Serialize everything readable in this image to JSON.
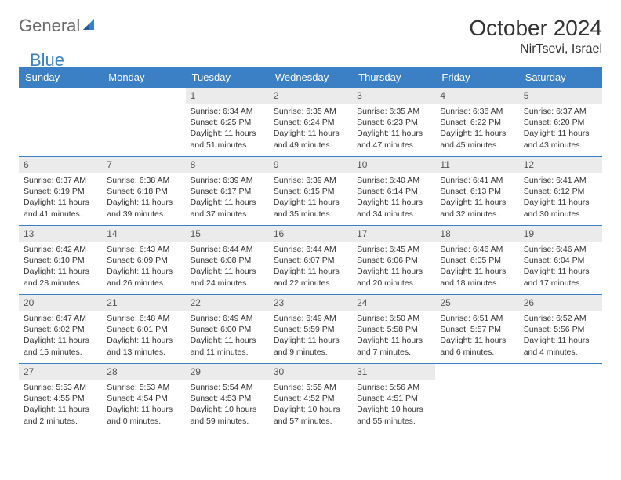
{
  "logo": {
    "text1": "General",
    "text2": "Blue"
  },
  "title": "October 2024",
  "location": "NirTsevi, Israel",
  "colors": {
    "header_bg": "#3b7fc4",
    "header_text": "#ffffff",
    "daynum_bg": "#ebebeb",
    "border": "#3b7fc4",
    "logo_gray": "#6b6b6b",
    "logo_blue": "#3b7fc4"
  },
  "weekdays": [
    "Sunday",
    "Monday",
    "Tuesday",
    "Wednesday",
    "Thursday",
    "Friday",
    "Saturday"
  ],
  "weeks": [
    [
      {
        "n": "",
        "sr": "",
        "ss": "",
        "dl": ""
      },
      {
        "n": "",
        "sr": "",
        "ss": "",
        "dl": ""
      },
      {
        "n": "1",
        "sr": "Sunrise: 6:34 AM",
        "ss": "Sunset: 6:25 PM",
        "dl": "Daylight: 11 hours and 51 minutes."
      },
      {
        "n": "2",
        "sr": "Sunrise: 6:35 AM",
        "ss": "Sunset: 6:24 PM",
        "dl": "Daylight: 11 hours and 49 minutes."
      },
      {
        "n": "3",
        "sr": "Sunrise: 6:35 AM",
        "ss": "Sunset: 6:23 PM",
        "dl": "Daylight: 11 hours and 47 minutes."
      },
      {
        "n": "4",
        "sr": "Sunrise: 6:36 AM",
        "ss": "Sunset: 6:22 PM",
        "dl": "Daylight: 11 hours and 45 minutes."
      },
      {
        "n": "5",
        "sr": "Sunrise: 6:37 AM",
        "ss": "Sunset: 6:20 PM",
        "dl": "Daylight: 11 hours and 43 minutes."
      }
    ],
    [
      {
        "n": "6",
        "sr": "Sunrise: 6:37 AM",
        "ss": "Sunset: 6:19 PM",
        "dl": "Daylight: 11 hours and 41 minutes."
      },
      {
        "n": "7",
        "sr": "Sunrise: 6:38 AM",
        "ss": "Sunset: 6:18 PM",
        "dl": "Daylight: 11 hours and 39 minutes."
      },
      {
        "n": "8",
        "sr": "Sunrise: 6:39 AM",
        "ss": "Sunset: 6:17 PM",
        "dl": "Daylight: 11 hours and 37 minutes."
      },
      {
        "n": "9",
        "sr": "Sunrise: 6:39 AM",
        "ss": "Sunset: 6:15 PM",
        "dl": "Daylight: 11 hours and 35 minutes."
      },
      {
        "n": "10",
        "sr": "Sunrise: 6:40 AM",
        "ss": "Sunset: 6:14 PM",
        "dl": "Daylight: 11 hours and 34 minutes."
      },
      {
        "n": "11",
        "sr": "Sunrise: 6:41 AM",
        "ss": "Sunset: 6:13 PM",
        "dl": "Daylight: 11 hours and 32 minutes."
      },
      {
        "n": "12",
        "sr": "Sunrise: 6:41 AM",
        "ss": "Sunset: 6:12 PM",
        "dl": "Daylight: 11 hours and 30 minutes."
      }
    ],
    [
      {
        "n": "13",
        "sr": "Sunrise: 6:42 AM",
        "ss": "Sunset: 6:10 PM",
        "dl": "Daylight: 11 hours and 28 minutes."
      },
      {
        "n": "14",
        "sr": "Sunrise: 6:43 AM",
        "ss": "Sunset: 6:09 PM",
        "dl": "Daylight: 11 hours and 26 minutes."
      },
      {
        "n": "15",
        "sr": "Sunrise: 6:44 AM",
        "ss": "Sunset: 6:08 PM",
        "dl": "Daylight: 11 hours and 24 minutes."
      },
      {
        "n": "16",
        "sr": "Sunrise: 6:44 AM",
        "ss": "Sunset: 6:07 PM",
        "dl": "Daylight: 11 hours and 22 minutes."
      },
      {
        "n": "17",
        "sr": "Sunrise: 6:45 AM",
        "ss": "Sunset: 6:06 PM",
        "dl": "Daylight: 11 hours and 20 minutes."
      },
      {
        "n": "18",
        "sr": "Sunrise: 6:46 AM",
        "ss": "Sunset: 6:05 PM",
        "dl": "Daylight: 11 hours and 18 minutes."
      },
      {
        "n": "19",
        "sr": "Sunrise: 6:46 AM",
        "ss": "Sunset: 6:04 PM",
        "dl": "Daylight: 11 hours and 17 minutes."
      }
    ],
    [
      {
        "n": "20",
        "sr": "Sunrise: 6:47 AM",
        "ss": "Sunset: 6:02 PM",
        "dl": "Daylight: 11 hours and 15 minutes."
      },
      {
        "n": "21",
        "sr": "Sunrise: 6:48 AM",
        "ss": "Sunset: 6:01 PM",
        "dl": "Daylight: 11 hours and 13 minutes."
      },
      {
        "n": "22",
        "sr": "Sunrise: 6:49 AM",
        "ss": "Sunset: 6:00 PM",
        "dl": "Daylight: 11 hours and 11 minutes."
      },
      {
        "n": "23",
        "sr": "Sunrise: 6:49 AM",
        "ss": "Sunset: 5:59 PM",
        "dl": "Daylight: 11 hours and 9 minutes."
      },
      {
        "n": "24",
        "sr": "Sunrise: 6:50 AM",
        "ss": "Sunset: 5:58 PM",
        "dl": "Daylight: 11 hours and 7 minutes."
      },
      {
        "n": "25",
        "sr": "Sunrise: 6:51 AM",
        "ss": "Sunset: 5:57 PM",
        "dl": "Daylight: 11 hours and 6 minutes."
      },
      {
        "n": "26",
        "sr": "Sunrise: 6:52 AM",
        "ss": "Sunset: 5:56 PM",
        "dl": "Daylight: 11 hours and 4 minutes."
      }
    ],
    [
      {
        "n": "27",
        "sr": "Sunrise: 5:53 AM",
        "ss": "Sunset: 4:55 PM",
        "dl": "Daylight: 11 hours and 2 minutes."
      },
      {
        "n": "28",
        "sr": "Sunrise: 5:53 AM",
        "ss": "Sunset: 4:54 PM",
        "dl": "Daylight: 11 hours and 0 minutes."
      },
      {
        "n": "29",
        "sr": "Sunrise: 5:54 AM",
        "ss": "Sunset: 4:53 PM",
        "dl": "Daylight: 10 hours and 59 minutes."
      },
      {
        "n": "30",
        "sr": "Sunrise: 5:55 AM",
        "ss": "Sunset: 4:52 PM",
        "dl": "Daylight: 10 hours and 57 minutes."
      },
      {
        "n": "31",
        "sr": "Sunrise: 5:56 AM",
        "ss": "Sunset: 4:51 PM",
        "dl": "Daylight: 10 hours and 55 minutes."
      },
      {
        "n": "",
        "sr": "",
        "ss": "",
        "dl": ""
      },
      {
        "n": "",
        "sr": "",
        "ss": "",
        "dl": ""
      }
    ]
  ]
}
